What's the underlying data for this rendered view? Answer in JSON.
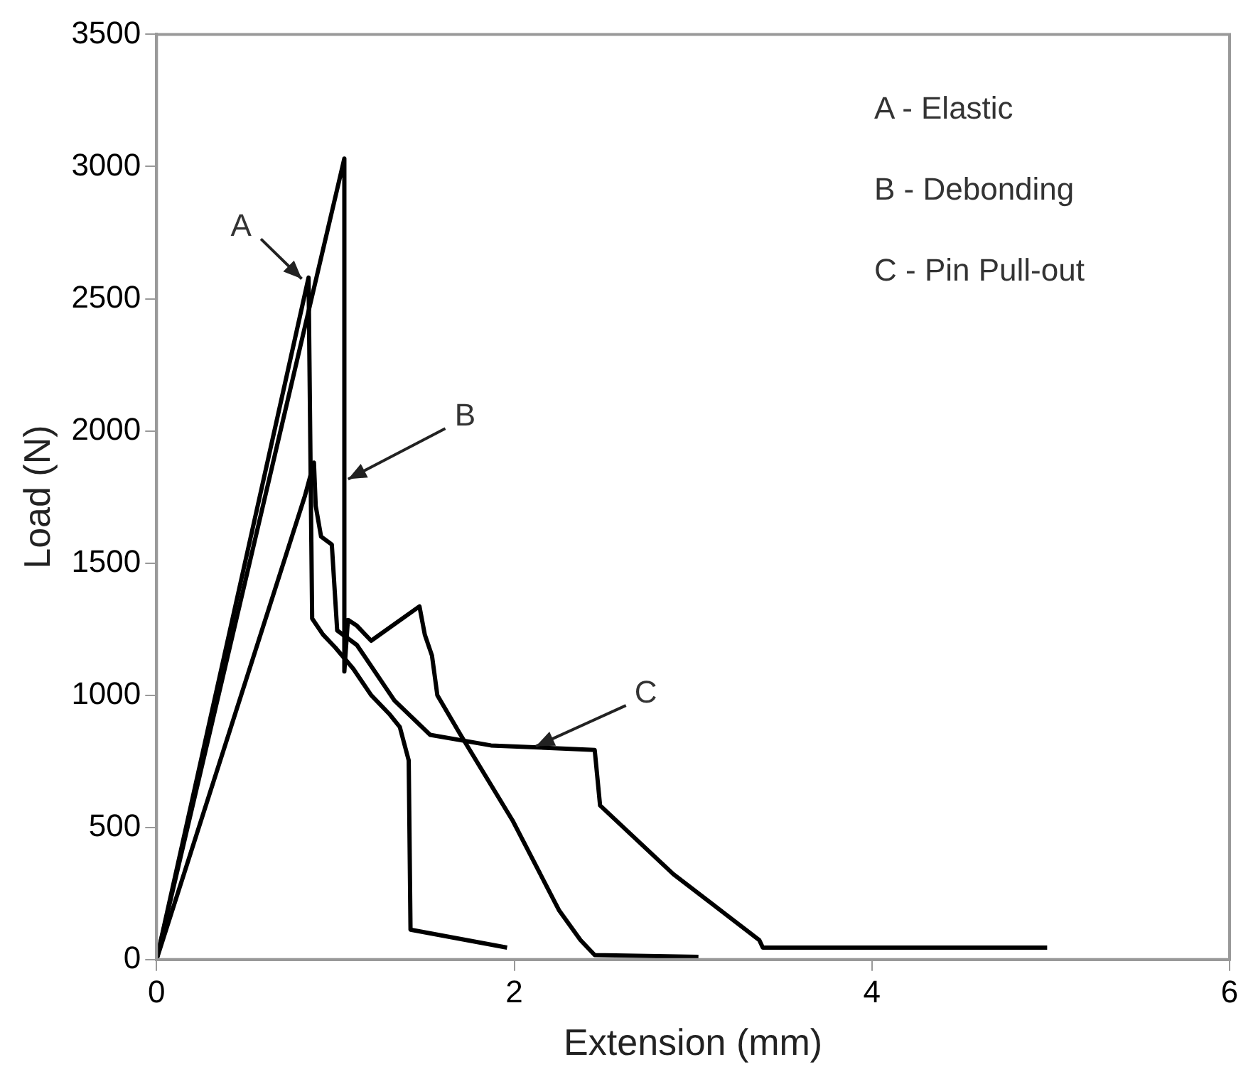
{
  "chart_data": {
    "type": "line",
    "xlabel": "Extension (mm)",
    "ylabel": "Load (N)",
    "xlim": [
      0,
      6
    ],
    "xticks": [
      0,
      2,
      4,
      6
    ],
    "ylim": [
      0,
      3500
    ],
    "yticks": [
      0,
      500,
      1000,
      1500,
      2000,
      2500,
      3000,
      3500
    ],
    "grid": false,
    "legend": false,
    "marker": "none",
    "line_style": "solid",
    "series": [
      {
        "color": "#000000",
        "x": [
          0,
          0.85,
          0.87,
          0.93,
          1.0,
          1.1,
          1.2,
          1.3,
          1.36,
          1.41,
          1.42,
          1.96
        ],
        "values": [
          0,
          2580,
          1290,
          1230,
          1180,
          1100,
          1000,
          930,
          880,
          753,
          113,
          45
        ]
      },
      {
        "color": "#000000",
        "x": [
          0,
          1.05,
          1.05,
          1.07,
          1.12,
          1.2,
          1.47,
          1.5,
          1.54,
          1.57,
          1.7,
          1.99,
          2.25,
          2.37,
          2.45,
          3.03
        ],
        "values": [
          0,
          3030,
          1090,
          1285,
          1263,
          1206,
          1336,
          1229,
          1150,
          1000,
          850,
          527,
          187,
          74,
          17,
          10
        ]
      },
      {
        "color": "#000000",
        "x": [
          0,
          0.83,
          0.88,
          0.89,
          0.92,
          0.98,
          1.01,
          1.12,
          1.33,
          1.53,
          1.87,
          2.45,
          2.48,
          2.89,
          3.37,
          3.39,
          4.98
        ],
        "values": [
          0,
          1755,
          1880,
          1716,
          1600,
          1570,
          1245,
          1190,
          980,
          850,
          810,
          793,
          583,
          323,
          74,
          45,
          45
        ]
      }
    ],
    "annotations": [
      {
        "text": "A",
        "x": 0.83,
        "y": 2565
      },
      {
        "text": "B",
        "x": 1.05,
        "y": 1810
      },
      {
        "text": "C",
        "x": 2.1,
        "y": 800
      },
      "A - Elastic",
      "B - Debonding",
      "C - Pin Pull-out"
    ]
  }
}
